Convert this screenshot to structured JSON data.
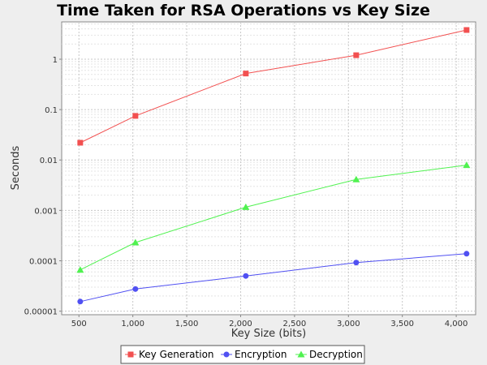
{
  "chart_data": {
    "type": "line",
    "title": "Time Taken for RSA Operations vs Key Size",
    "xlabel": "Key Size (bits)",
    "ylabel": "Seconds",
    "xlim": [
      340,
      4180
    ],
    "ylim": [
      8.5e-06,
      5.5
    ],
    "yscale": "log",
    "grid": true,
    "legend_position": "bottom",
    "x": [
      512,
      1024,
      2048,
      3072,
      4096
    ],
    "x_ticks": [
      500,
      1000,
      1500,
      2000,
      2500,
      3000,
      3500,
      4000
    ],
    "x_tick_labels": [
      "500",
      "1,000",
      "1,500",
      "2,000",
      "2,500",
      "3,000",
      "3,500",
      "4,000"
    ],
    "y_ticks": [
      1e-05,
      0.0001,
      0.001,
      0.01,
      0.1,
      1
    ],
    "y_tick_labels": [
      "0.00001",
      "0.0001",
      "0.001",
      "0.01",
      "0.1",
      "1"
    ],
    "series": [
      {
        "name": "Key Generation",
        "color": "#f25050",
        "marker": "square",
        "values": [
          0.022,
          0.075,
          0.52,
          1.2,
          3.8
        ]
      },
      {
        "name": "Encryption",
        "color": "#5050f2",
        "marker": "circle",
        "values": [
          1.55e-05,
          2.75e-05,
          5e-05,
          9.2e-05,
          0.000138
        ]
      },
      {
        "name": "Decryption",
        "color": "#50f250",
        "marker": "triangle",
        "values": [
          6.6e-05,
          0.00023,
          0.00116,
          0.0041,
          0.0079
        ]
      }
    ]
  }
}
